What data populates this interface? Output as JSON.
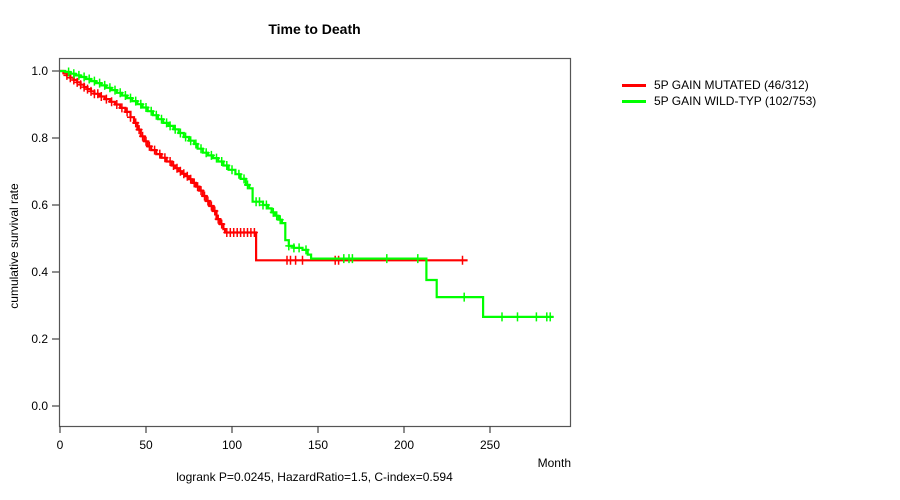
{
  "title": "Time to Death",
  "axes": {
    "x": {
      "label": "Month",
      "ticks": [
        0,
        50,
        100,
        150,
        200,
        250
      ]
    },
    "y": {
      "label": "cumulative survival rate",
      "ticks": [
        "0.0",
        "0.2",
        "0.4",
        "0.6",
        "0.8",
        "1.0"
      ]
    }
  },
  "footer": "logrank P=0.0245, HazardRatio=1.5, C-index=0.594",
  "legend": [
    {
      "label": "5P GAIN MUTATED (46/312)",
      "color": "#ff0000"
    },
    {
      "label": "5P GAIN WILD-TYP (102/753)",
      "color": "#00ff00"
    }
  ],
  "chart_data": {
    "type": "line",
    "subtype": "kaplan-meier-step",
    "title": "Time to Death",
    "xlabel": "Month",
    "ylabel": "cumulative survival rate",
    "xlim": [
      0,
      296
    ],
    "ylim": [
      0.0,
      1.04
    ],
    "grid": false,
    "legend_position": "right-outside",
    "stats": {
      "logrank_p": 0.0245,
      "hazard_ratio": 1.5,
      "c_index": 0.594
    },
    "series": [
      {
        "name": "5P GAIN MUTATED (46/312)",
        "color": "#ff0000",
        "events": "46/312",
        "end_month": 237,
        "steps": [
          [
            0,
            1.0
          ],
          [
            2,
            0.993
          ],
          [
            4,
            0.987
          ],
          [
            6,
            0.98
          ],
          [
            8,
            0.973
          ],
          [
            10,
            0.966
          ],
          [
            12,
            0.959
          ],
          [
            14,
            0.952
          ],
          [
            16,
            0.946
          ],
          [
            18,
            0.939
          ],
          [
            20,
            0.932
          ],
          [
            23,
            0.924
          ],
          [
            26,
            0.916
          ],
          [
            29,
            0.908
          ],
          [
            32,
            0.9
          ],
          [
            35,
            0.89
          ],
          [
            38,
            0.878
          ],
          [
            41,
            0.862
          ],
          [
            43,
            0.845
          ],
          [
            45,
            0.825
          ],
          [
            47,
            0.805
          ],
          [
            49,
            0.79
          ],
          [
            51,
            0.775
          ],
          [
            53,
            0.764
          ],
          [
            56,
            0.752
          ],
          [
            59,
            0.741
          ],
          [
            62,
            0.73
          ],
          [
            65,
            0.718
          ],
          [
            67,
            0.71
          ],
          [
            69,
            0.701
          ],
          [
            71,
            0.693
          ],
          [
            73,
            0.686
          ],
          [
            75,
            0.677
          ],
          [
            77,
            0.666
          ],
          [
            79,
            0.655
          ],
          [
            81,
            0.643
          ],
          [
            83,
            0.627
          ],
          [
            85,
            0.612
          ],
          [
            87,
            0.597
          ],
          [
            89,
            0.582
          ],
          [
            91,
            0.558
          ],
          [
            93,
            0.543
          ],
          [
            95,
            0.528
          ],
          [
            96,
            0.518
          ],
          [
            114,
            0.435
          ]
        ],
        "censor_months": [
          4,
          6,
          8,
          10,
          12,
          14,
          16,
          18,
          20,
          22,
          24,
          27,
          30,
          33,
          36,
          39,
          41,
          44,
          46,
          48,
          50,
          52,
          55,
          58,
          61,
          64,
          66,
          68,
          70,
          72,
          74,
          76,
          78,
          80,
          82,
          84,
          86,
          88,
          90,
          92,
          94,
          97,
          99,
          101,
          103,
          105,
          107,
          109,
          111,
          113,
          132,
          134,
          137,
          141,
          160,
          162,
          234
        ]
      },
      {
        "name": "5P GAIN WILD-TYP (102/753)",
        "color": "#00ff00",
        "events": "102/753",
        "end_month": 287,
        "steps": [
          [
            0,
            1.0
          ],
          [
            3,
            0.997
          ],
          [
            6,
            0.992
          ],
          [
            9,
            0.987
          ],
          [
            12,
            0.982
          ],
          [
            15,
            0.976
          ],
          [
            18,
            0.97
          ],
          [
            21,
            0.964
          ],
          [
            24,
            0.957
          ],
          [
            27,
            0.95
          ],
          [
            30,
            0.943
          ],
          [
            33,
            0.935
          ],
          [
            36,
            0.927
          ],
          [
            39,
            0.919
          ],
          [
            42,
            0.91
          ],
          [
            45,
            0.901
          ],
          [
            48,
            0.891
          ],
          [
            51,
            0.88
          ],
          [
            54,
            0.868
          ],
          [
            57,
            0.856
          ],
          [
            60,
            0.845
          ],
          [
            63,
            0.836
          ],
          [
            66,
            0.826
          ],
          [
            69,
            0.815
          ],
          [
            72,
            0.803
          ],
          [
            75,
            0.792
          ],
          [
            78,
            0.782
          ],
          [
            80,
            0.768
          ],
          [
            83,
            0.756
          ],
          [
            86,
            0.748
          ],
          [
            89,
            0.74
          ],
          [
            92,
            0.73
          ],
          [
            95,
            0.718
          ],
          [
            98,
            0.705
          ],
          [
            102,
            0.692
          ],
          [
            105,
            0.678
          ],
          [
            108,
            0.66
          ],
          [
            110,
            0.65
          ],
          [
            112,
            0.61
          ],
          [
            118,
            0.6
          ],
          [
            121,
            0.59
          ],
          [
            123,
            0.578
          ],
          [
            125,
            0.568
          ],
          [
            127,
            0.556
          ],
          [
            129,
            0.546
          ],
          [
            131,
            0.495
          ],
          [
            133,
            0.478
          ],
          [
            136,
            0.472
          ],
          [
            141,
            0.466
          ],
          [
            144,
            0.452
          ],
          [
            146,
            0.44
          ],
          [
            213,
            0.376
          ],
          [
            219,
            0.325
          ],
          [
            246,
            0.266
          ]
        ],
        "censor_months": [
          5,
          8,
          11,
          14,
          17,
          20,
          23,
          26,
          29,
          32,
          35,
          38,
          41,
          44,
          47,
          50,
          53,
          56,
          59,
          62,
          64,
          67,
          70,
          73,
          76,
          79,
          82,
          85,
          88,
          91,
          94,
          97,
          100,
          104,
          107,
          109,
          114,
          116,
          118,
          120,
          124,
          126,
          128,
          133,
          136,
          139,
          143,
          165,
          168,
          170,
          190,
          208,
          235,
          257,
          266,
          277,
          283,
          285
        ]
      }
    ]
  }
}
